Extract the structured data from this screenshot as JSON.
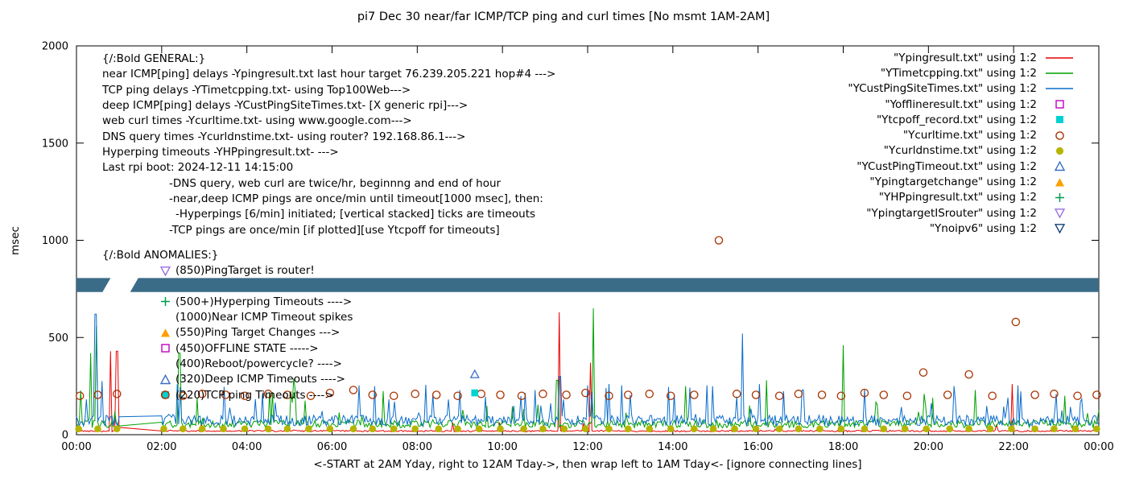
{
  "general": {
    "lines": [
      "{/:Bold GENERAL:}",
      "near ICMP[ping] delays -Ypingresult.txt last hour target 76.239.205.221 hop#4 --->",
      "TCP ping delays -YTimetcpping.txt- using Top100Web--->",
      "deep ICMP[ping] delays -YCustPingSiteTimes.txt- [X generic rpi]--->",
      "web curl times -Ycurltime.txt- using www.google.com--->",
      "DNS query times -Ycurldnstime.txt- using router? 192.168.86.1--->",
      "Hyperping timeouts -YHPpingresult.txt- --->",
      "Last rpi boot: 2024-12-11 14:15:00",
      "-DNS query, web curl are twice/hr, beginnng and end of hour",
      "-near,deep ICMP pings are once/min until timeout[1000 msec], then:",
      "-Hyperpings [6/min] initiated; [vertical stacked] ticks are timeouts",
      "-TCP pings are once/min [if plotted][use Ytcpoff for timeouts]"
    ]
  },
  "anomalies": {
    "heading": "{/:Bold ANOMALIES:}",
    "items": [
      {
        "marker": "open-triangle-down",
        "color": "#9a6fe0",
        "text": "(850)PingTarget is router!"
      },
      {
        "marker": "none",
        "color": "",
        "text": ""
      },
      {
        "marker": "plus",
        "color": "#009e4e",
        "text": "(500+)Hyperping Timeouts ---->"
      },
      {
        "marker": "none",
        "color": "",
        "text": "(1000)Near ICMP Timeout spikes"
      },
      {
        "marker": "filled-triangle-up",
        "color": "#ff9f00",
        "text": "(550)Ping Target Changes --->"
      },
      {
        "marker": "open-square",
        "color": "#c000c0",
        "text": "(450)OFFLINE STATE ----->"
      },
      {
        "marker": "none",
        "color": "",
        "text": "(400)Reboot/powercycle? ---->"
      },
      {
        "marker": "open-triangle-up",
        "color": "#3b6fc4",
        "text": "(320)Deep ICMP Timeouts ---->"
      },
      {
        "marker": "square-circle",
        "color": "#00d1d1",
        "color2": "#a83200",
        "text": "(220)TCP ping Timeouts ---->"
      }
    ]
  },
  "legend": [
    {
      "label": "\"Ypingresult.txt\" using 1:2",
      "glyph": "line",
      "color": "#e60000"
    },
    {
      "label": "\"YTimetcpping.txt\" using 1:2",
      "glyph": "line",
      "color": "#00a000"
    },
    {
      "label": "\"YCustPingSiteTimes.txt\" using 1:2",
      "glyph": "line",
      "color": "#0a6ccc"
    },
    {
      "label": "\"Yofflineresult.txt\" using 1:2",
      "glyph": "open-square",
      "color": "#c000c0"
    },
    {
      "label": "\"Ytcpoff_record.txt\" using 1:2",
      "glyph": "filled-square",
      "color": "#00d1d1"
    },
    {
      "label": "\"Ycurltime.txt\" using 1:2",
      "glyph": "open-circle",
      "color": "#a83200"
    },
    {
      "label": "\"Ycurldnstime.txt\" using 1:2",
      "glyph": "filled-circle",
      "color": "#b5b500"
    },
    {
      "label": "\"YCustPingTimeout.txt\" using 1:2",
      "glyph": "open-triangle-up",
      "color": "#3b6fc4"
    },
    {
      "label": "\"Ypingtargetchange\" using 1:2",
      "glyph": "filled-triangle-up",
      "color": "#ff9f00"
    },
    {
      "label": "\"YHPpingresult.txt\" using 1:2",
      "glyph": "plus",
      "color": "#009e4e"
    },
    {
      "label": "\"YpingtargetISrouter\" using 1:2",
      "glyph": "open-triangle-down",
      "color": "#9a6fe0"
    },
    {
      "label": "\"Ynoipv6\" using 1:2",
      "glyph": "open-triangle-down",
      "color": "#14407a"
    }
  ],
  "chart_data": {
    "type": "line",
    "title": "pi7 Dec 30  near/far ICMP/TCP ping and curl times [No msmt 1AM-2AM]",
    "xlabel": "<-START at 2AM Yday, right to 12AM Tday->, then wrap left to 1AM Tday<- [ignore connecting lines]",
    "ylabel": "msec",
    "ylim": [
      0,
      2000
    ],
    "yticks": [
      0,
      500,
      1000,
      1500,
      2000
    ],
    "xlim_hours": [
      0,
      24
    ],
    "xtick_step_hours": 2,
    "xticks": [
      "00:00",
      "02:00",
      "04:00",
      "06:00",
      "08:00",
      "10:00",
      "12:00",
      "14:00",
      "16:00",
      "18:00",
      "20:00",
      "22:00",
      "00:00"
    ],
    "measurement_gap_hours": [
      1,
      2
    ],
    "band": {
      "y_msec": 770,
      "height_msec": 72,
      "gap_x_hours": [
        0.8,
        1.45
      ],
      "color": "#3a6b87"
    },
    "line_series": [
      {
        "name": "Ypingresult.txt",
        "color": "#e60000",
        "baseline": 15,
        "noise": 8,
        "spike_prob": 0.02,
        "spike_amp": 60,
        "spikes": [
          [
            0.8,
            430
          ],
          [
            0.95,
            430
          ],
          [
            11.32,
            630
          ],
          [
            12.06,
            370
          ],
          [
            21.96,
            260
          ]
        ]
      },
      {
        "name": "YTimetcpping.txt",
        "color": "#00a000",
        "baseline": 35,
        "noise": 40,
        "spike_prob": 0.07,
        "spike_amp": 180,
        "spikes": [
          [
            0.32,
            420
          ],
          [
            0.47,
            560
          ],
          [
            2.42,
            420
          ],
          [
            5.1,
            290
          ],
          [
            11.28,
            280
          ],
          [
            12.13,
            650
          ],
          [
            14.3,
            250
          ],
          [
            16.2,
            280
          ],
          [
            18.01,
            460
          ],
          [
            19.9,
            210
          ],
          [
            21.1,
            230
          ],
          [
            23.2,
            200
          ]
        ]
      },
      {
        "name": "YCustPingSiteTimes.txt",
        "color": "#0a6ccc",
        "baseline": 45,
        "noise": 55,
        "spike_prob": 0.09,
        "spike_amp": 200,
        "spikes": [
          [
            0.45,
            620
          ],
          [
            2.38,
            260
          ],
          [
            7.0,
            250
          ],
          [
            9.0,
            230
          ],
          [
            11.35,
            300
          ],
          [
            12.1,
            220
          ],
          [
            15.63,
            520
          ],
          [
            17.05,
            230
          ],
          [
            20.6,
            250
          ],
          [
            23.0,
            210
          ]
        ]
      }
    ],
    "scatter_series": [
      {
        "name": "Ycurltime.txt",
        "marker": "open-circle",
        "color": "#a83200",
        "points": [
          [
            0.08,
            200
          ],
          [
            0.5,
            205
          ],
          [
            0.95,
            210
          ],
          [
            2.08,
            205
          ],
          [
            2.5,
            200
          ],
          [
            2.95,
            210
          ],
          [
            3.5,
            205
          ],
          [
            3.95,
            200
          ],
          [
            4.5,
            210
          ],
          [
            4.95,
            205
          ],
          [
            5.5,
            200
          ],
          [
            5.95,
            215
          ],
          [
            6.5,
            230
          ],
          [
            6.95,
            205
          ],
          [
            7.45,
            200
          ],
          [
            7.95,
            210
          ],
          [
            8.45,
            205
          ],
          [
            8.95,
            200
          ],
          [
            9.5,
            210
          ],
          [
            9.95,
            205
          ],
          [
            10.45,
            200
          ],
          [
            10.95,
            210
          ],
          [
            11.5,
            205
          ],
          [
            11.95,
            215
          ],
          [
            12.5,
            200
          ],
          [
            12.95,
            205
          ],
          [
            13.45,
            210
          ],
          [
            13.95,
            200
          ],
          [
            14.5,
            205
          ],
          [
            15.08,
            1000
          ],
          [
            15.5,
            210
          ],
          [
            15.95,
            205
          ],
          [
            16.5,
            200
          ],
          [
            16.95,
            210
          ],
          [
            17.5,
            205
          ],
          [
            17.95,
            200
          ],
          [
            18.5,
            215
          ],
          [
            18.95,
            205
          ],
          [
            19.5,
            200
          ],
          [
            19.88,
            320
          ],
          [
            20.45,
            205
          ],
          [
            20.95,
            310
          ],
          [
            21.5,
            200
          ],
          [
            22.05,
            580
          ],
          [
            22.5,
            205
          ],
          [
            22.95,
            210
          ],
          [
            23.5,
            200
          ],
          [
            23.95,
            205
          ]
        ]
      },
      {
        "name": "Ycurldnstime.txt",
        "marker": "filled-circle",
        "color": "#b5b500",
        "y": 30,
        "xs": [
          0.05,
          0.5,
          0.95,
          2.05,
          2.5,
          2.95,
          3.45,
          3.95,
          4.5,
          4.95,
          5.45,
          5.95,
          6.5,
          6.95,
          7.45,
          7.95,
          8.5,
          8.95,
          9.45,
          9.95,
          10.5,
          10.95,
          11.45,
          11.95,
          12.5,
          12.95,
          13.45,
          13.95,
          14.5,
          14.95,
          15.45,
          15.95,
          16.5,
          16.95,
          17.45,
          17.95,
          18.5,
          18.95,
          19.45,
          19.95,
          20.5,
          20.95,
          21.45,
          21.95,
          22.5,
          22.95,
          23.45,
          23.95
        ]
      },
      {
        "name": "Ytcpoff_record.txt",
        "marker": "filled-square",
        "color": "#00d1d1",
        "points": [
          [
            9.35,
            215
          ]
        ]
      },
      {
        "name": "YCustPingTimeout.txt",
        "marker": "open-triangle-up",
        "color": "#3b6fc4",
        "points": [
          [
            9.35,
            310
          ]
        ]
      }
    ]
  }
}
